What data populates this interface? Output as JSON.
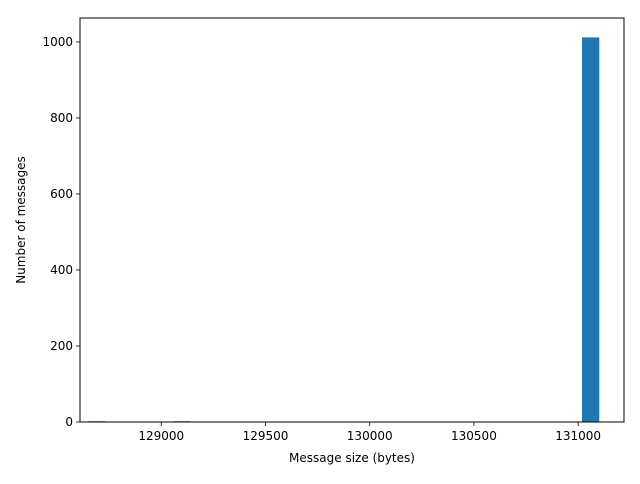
{
  "chart_data": {
    "type": "bar",
    "title": "",
    "xlabel": "Message size (bytes)",
    "ylabel": "Number of messages",
    "xlim": [
      128610,
      131220
    ],
    "ylim": [
      0,
      1063
    ],
    "x_ticks": [
      129000,
      129500,
      130000,
      130500,
      131000
    ],
    "y_ticks": [
      0,
      200,
      400,
      600,
      800,
      1000
    ],
    "grid": false,
    "legend": "none",
    "bin_width": 83,
    "bars": [
      {
        "x": 128690,
        "value": 2
      },
      {
        "x": 129100,
        "value": 2
      },
      {
        "x": 131060,
        "value": 1012
      }
    ],
    "color": "#1f77b4"
  }
}
